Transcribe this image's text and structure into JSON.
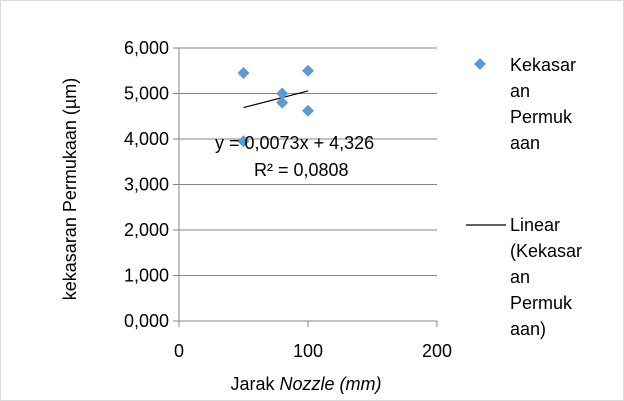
{
  "chart_data": {
    "type": "scatter",
    "series": [
      {
        "name": "Kekasaran Permukaan",
        "color": "#5b9bd5",
        "marker": "diamond",
        "points": [
          {
            "x": 50,
            "y": 5.45
          },
          {
            "x": 50,
            "y": 3.95
          },
          {
            "x": 80,
            "y": 5.0
          },
          {
            "x": 80,
            "y": 4.8
          },
          {
            "x": 100,
            "y": 5.5
          },
          {
            "x": 100,
            "y": 4.62
          }
        ]
      }
    ],
    "trendline": {
      "name": "Linear (Kekasaran Permukaan)",
      "color": "#000000",
      "slope": 0.0073,
      "intercept": 4.326,
      "x_range": [
        50,
        100
      ],
      "equation": "y = 0,0073x + 4,326",
      "r_squared": "R² = 0,0808"
    },
    "x_axis": {
      "label_prefix": "Jarak ",
      "label_italic": "Nozzle (mm)",
      "range": [
        0,
        200
      ],
      "ticks": [
        0,
        100,
        200
      ],
      "tick_labels": [
        "0",
        "100",
        "200"
      ]
    },
    "y_axis": {
      "label": "kekasaran Permukaan (µm)",
      "range": [
        0,
        6
      ],
      "ticks": [
        0,
        1,
        2,
        3,
        4,
        5,
        6
      ],
      "tick_labels": [
        "0,000",
        "1,000",
        "2,000",
        "3,000",
        "4,000",
        "5,000",
        "6,000"
      ]
    },
    "grid": "horizontal",
    "legend": {
      "position": "right",
      "marker_label_lines": [
        "Kekasar",
        "an",
        "Permuk",
        "aan"
      ],
      "trend_label_lines": [
        "Linear",
        "(Kekasar",
        "an",
        "Permuk",
        "aan)"
      ]
    }
  }
}
